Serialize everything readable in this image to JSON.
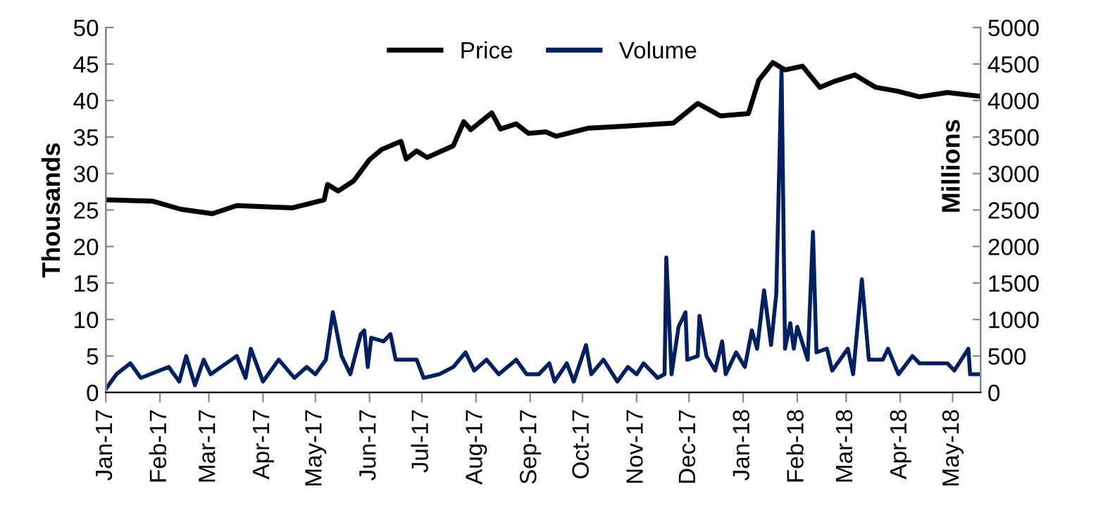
{
  "chart_data": {
    "type": "line",
    "ylabel": "Thousands",
    "y2label": "Millions",
    "legend": "top",
    "grid": false,
    "marker": "none",
    "line_style": "solid",
    "xlim": [
      "2017-01-01",
      "2018-05-17"
    ],
    "xticks": [
      {
        "value": "2017-01-01",
        "label": "Jan-17"
      },
      {
        "value": "2017-02-01",
        "label": "Feb-17"
      },
      {
        "value": "2017-03-01",
        "label": "Mar-17"
      },
      {
        "value": "2017-04-01",
        "label": "Apr-17"
      },
      {
        "value": "2017-05-01",
        "label": "May-17"
      },
      {
        "value": "2017-06-01",
        "label": "Jun-17"
      },
      {
        "value": "2017-07-01",
        "label": "Jul-17"
      },
      {
        "value": "2017-08-01",
        "label": "Aug-17"
      },
      {
        "value": "2017-09-01",
        "label": "Sep-17"
      },
      {
        "value": "2017-10-01",
        "label": "Oct-17"
      },
      {
        "value": "2017-11-01",
        "label": "Nov-17"
      },
      {
        "value": "2017-12-01",
        "label": "Dec-17"
      },
      {
        "value": "2018-01-01",
        "label": "Jan-18"
      },
      {
        "value": "2018-02-01",
        "label": "Feb-18"
      },
      {
        "value": "2018-03-01",
        "label": "Mar-18"
      },
      {
        "value": "2018-04-01",
        "label": "Apr-18"
      },
      {
        "value": "2018-05-01",
        "label": "May-18"
      }
    ],
    "ylim": [
      0,
      50
    ],
    "yticks": [
      0,
      5,
      10,
      15,
      20,
      25,
      30,
      35,
      40,
      45,
      50
    ],
    "y2lim": [
      0,
      5000
    ],
    "y2ticks": [
      0,
      500,
      1000,
      1500,
      2000,
      2500,
      3000,
      3500,
      4000,
      4500,
      5000
    ],
    "series": [
      {
        "name": "Price",
        "color": "#000000",
        "x": [
          "2017-01-01",
          "2017-01-28",
          "2017-02-13",
          "2017-03-03",
          "2017-03-17",
          "2017-04-18",
          "2017-05-06",
          "2017-05-08",
          "2017-05-14",
          "2017-05-23",
          "2017-06-01",
          "2017-06-08",
          "2017-06-19",
          "2017-06-22",
          "2017-06-28",
          "2017-07-04",
          "2017-07-19",
          "2017-07-25",
          "2017-07-29",
          "2017-08-10",
          "2017-08-15",
          "2017-08-24",
          "2017-08-31",
          "2017-09-10",
          "2017-09-16",
          "2017-10-04",
          "2017-10-26",
          "2017-11-22",
          "2017-12-06",
          "2017-12-19",
          "2018-01-04",
          "2018-01-10",
          "2018-01-18",
          "2018-01-25",
          "2018-02-04",
          "2018-02-14",
          "2018-02-22",
          "2018-03-06",
          "2018-03-18",
          "2018-03-30",
          "2018-04-12",
          "2018-04-28",
          "2018-05-16"
        ],
        "values": [
          26.4,
          26.2,
          25.1,
          24.5,
          25.6,
          25.3,
          26.4,
          28.5,
          27.6,
          29.0,
          31.9,
          33.3,
          34.4,
          32.0,
          33.1,
          32.2,
          33.8,
          37.1,
          36.0,
          38.3,
          36.1,
          36.8,
          35.5,
          35.7,
          35.1,
          36.2,
          36.5,
          36.9,
          39.6,
          37.9,
          38.2,
          42.8,
          45.2,
          44.2,
          44.7,
          41.8,
          42.6,
          43.5,
          41.8,
          41.3,
          40.5,
          41.1,
          40.6
        ]
      },
      {
        "name": "Volume",
        "color": "#002060",
        "axis": "y2",
        "x": [
          "2017-01-01",
          "2017-01-07",
          "2017-01-15",
          "2017-01-21",
          "2017-02-06",
          "2017-02-12",
          "2017-02-16",
          "2017-02-21",
          "2017-02-26",
          "2017-03-02",
          "2017-03-17",
          "2017-03-22",
          "2017-03-25",
          "2017-04-01",
          "2017-04-10",
          "2017-04-19",
          "2017-04-26",
          "2017-05-01",
          "2017-05-07",
          "2017-05-11",
          "2017-05-16",
          "2017-05-21",
          "2017-05-27",
          "2017-05-29",
          "2017-05-31",
          "2017-06-02",
          "2017-06-09",
          "2017-06-13",
          "2017-06-16",
          "2017-06-28",
          "2017-07-02",
          "2017-07-11",
          "2017-07-19",
          "2017-07-26",
          "2017-07-31",
          "2017-08-07",
          "2017-08-14",
          "2017-08-24",
          "2017-08-30",
          "2017-09-06",
          "2017-09-12",
          "2017-09-15",
          "2017-09-22",
          "2017-09-26",
          "2017-10-03",
          "2017-10-06",
          "2017-10-13",
          "2017-10-21",
          "2017-10-27",
          "2017-11-01",
          "2017-11-05",
          "2017-11-13",
          "2017-11-17",
          "2017-11-18",
          "2017-11-21",
          "2017-11-25",
          "2017-11-29",
          "2017-11-30",
          "2017-12-06",
          "2017-12-07",
          "2017-12-11",
          "2017-12-16",
          "2017-12-20",
          "2017-12-22",
          "2017-12-28",
          "2018-01-02",
          "2018-01-06",
          "2018-01-09",
          "2018-01-13",
          "2018-01-17",
          "2018-01-20",
          "2018-01-23",
          "2018-01-25",
          "2018-01-28",
          "2018-01-30",
          "2018-02-01",
          "2018-02-07",
          "2018-02-10",
          "2018-02-12",
          "2018-02-18",
          "2018-02-21",
          "2018-03-02",
          "2018-03-05",
          "2018-03-10",
          "2018-03-14",
          "2018-03-22",
          "2018-03-25",
          "2018-03-31",
          "2018-04-08",
          "2018-04-12",
          "2018-04-28",
          "2018-05-02",
          "2018-05-10",
          "2018-05-11",
          "2018-05-16"
        ],
        "values": [
          50,
          250,
          400,
          200,
          350,
          150,
          500,
          100,
          450,
          250,
          500,
          200,
          600,
          150,
          450,
          200,
          350,
          250,
          450,
          1100,
          500,
          250,
          800,
          850,
          350,
          750,
          700,
          800,
          450,
          450,
          200,
          250,
          350,
          550,
          300,
          450,
          250,
          450,
          250,
          250,
          400,
          150,
          400,
          150,
          650,
          250,
          450,
          150,
          350,
          250,
          400,
          200,
          250,
          1850,
          250,
          900,
          1100,
          450,
          500,
          1050,
          500,
          300,
          700,
          250,
          550,
          350,
          850,
          600,
          1400,
          650,
          1350,
          4450,
          600,
          950,
          600,
          900,
          450,
          2200,
          550,
          600,
          300,
          600,
          250,
          1550,
          450,
          450,
          600,
          250,
          500,
          400,
          400,
          300,
          600,
          250,
          250
        ]
      }
    ]
  }
}
